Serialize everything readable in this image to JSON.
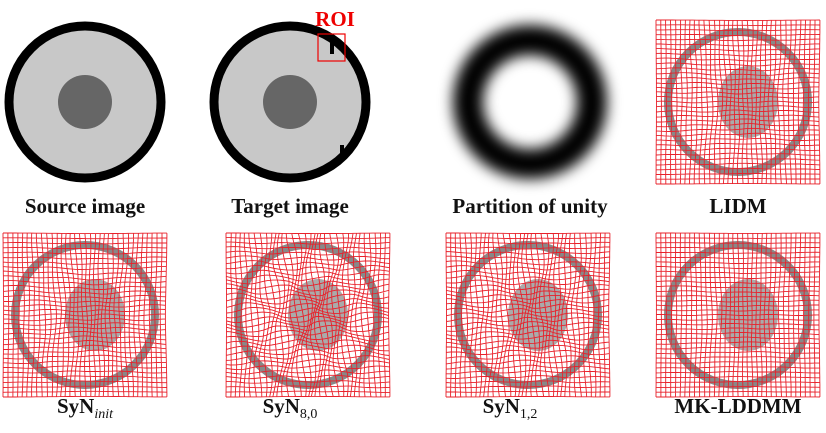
{
  "roi_label": "ROI",
  "panels": [
    {
      "caption": "Source image"
    },
    {
      "caption": "Target image"
    },
    {
      "caption": "Partition of unity"
    },
    {
      "caption": "LIDM"
    },
    {
      "caption": "SyN",
      "subscript": "init"
    },
    {
      "caption": "SyN",
      "subscript": "8,0"
    },
    {
      "caption": "SyN",
      "subscript": "1,2"
    },
    {
      "caption": "MK-LDDMM"
    }
  ]
}
